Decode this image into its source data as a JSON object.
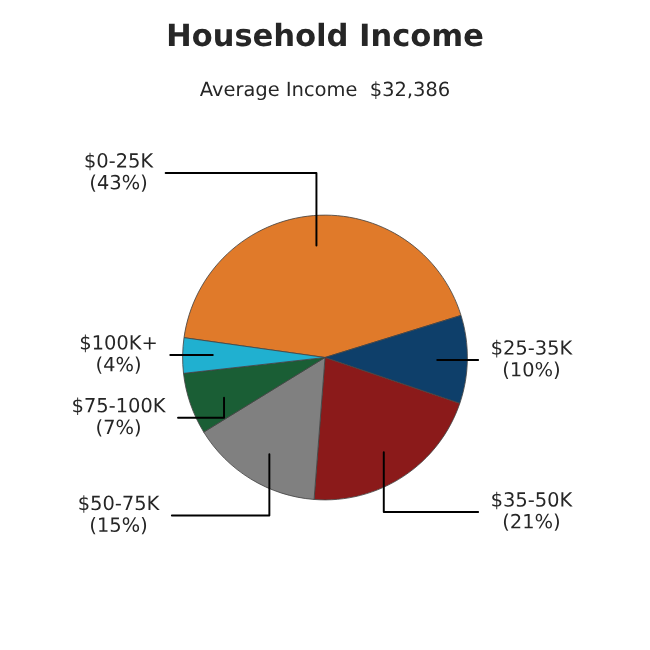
{
  "chart_data": {
    "type": "pie",
    "title": "Household Income",
    "subtitle": "Average Income  $32,386",
    "categories": [
      "$0-25K",
      "$25-35K",
      "$35-50K",
      "$50-75K",
      "$75-100K",
      "$100K+"
    ],
    "values": [
      43,
      10,
      21,
      15,
      7,
      4
    ],
    "value_labels": [
      "(43%)",
      "(10%)",
      "(21%)",
      "(15%)",
      "(7%)",
      "(4%)"
    ],
    "colors": [
      "#e07a2a",
      "#0e3f6a",
      "#8b1a1a",
      "#808080",
      "#1a5e35",
      "#20b0d0"
    ],
    "legend": false
  }
}
